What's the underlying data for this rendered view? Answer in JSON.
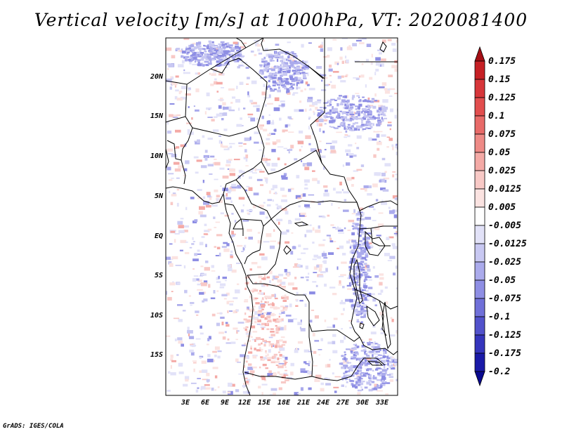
{
  "title": "Vertical velocity [m/s] at 1000hPa, VT: 2020081400",
  "credit": "GrADS: IGES/COLA",
  "map": {
    "variable": "Vertical velocity",
    "units": "m/s",
    "level": "1000hPa",
    "valid_time": "2020081400",
    "lat_labels": [
      "20N",
      "15N",
      "10N",
      "5N",
      "EQ",
      "5S",
      "10S",
      "15S"
    ],
    "lon_labels": [
      "3E",
      "6E",
      "9E",
      "12E",
      "15E",
      "18E",
      "21E",
      "24E",
      "27E",
      "30E",
      "33E"
    ]
  },
  "colorbar": {
    "labels": [
      "0.175",
      "0.15",
      "0.125",
      "0.1",
      "0.075",
      "0.05",
      "0.025",
      "0.0125",
      "0.005",
      "-0.005",
      "-0.0125",
      "-0.025",
      "-0.05",
      "-0.075",
      "-0.1",
      "-0.125",
      "-0.175",
      "-0.2"
    ],
    "colors": [
      "#a50f15",
      "#c62025",
      "#d7363a",
      "#e24e4e",
      "#e86a68",
      "#ee8a86",
      "#f4aaa6",
      "#f8c9c6",
      "#fbe3e1",
      "#ffffff",
      "#e2e2f8",
      "#c8c8f2",
      "#ababec",
      "#8e8ee4",
      "#7070d9",
      "#5252cc",
      "#3535bd",
      "#1a1aa8",
      "#0a0a90"
    ]
  }
}
